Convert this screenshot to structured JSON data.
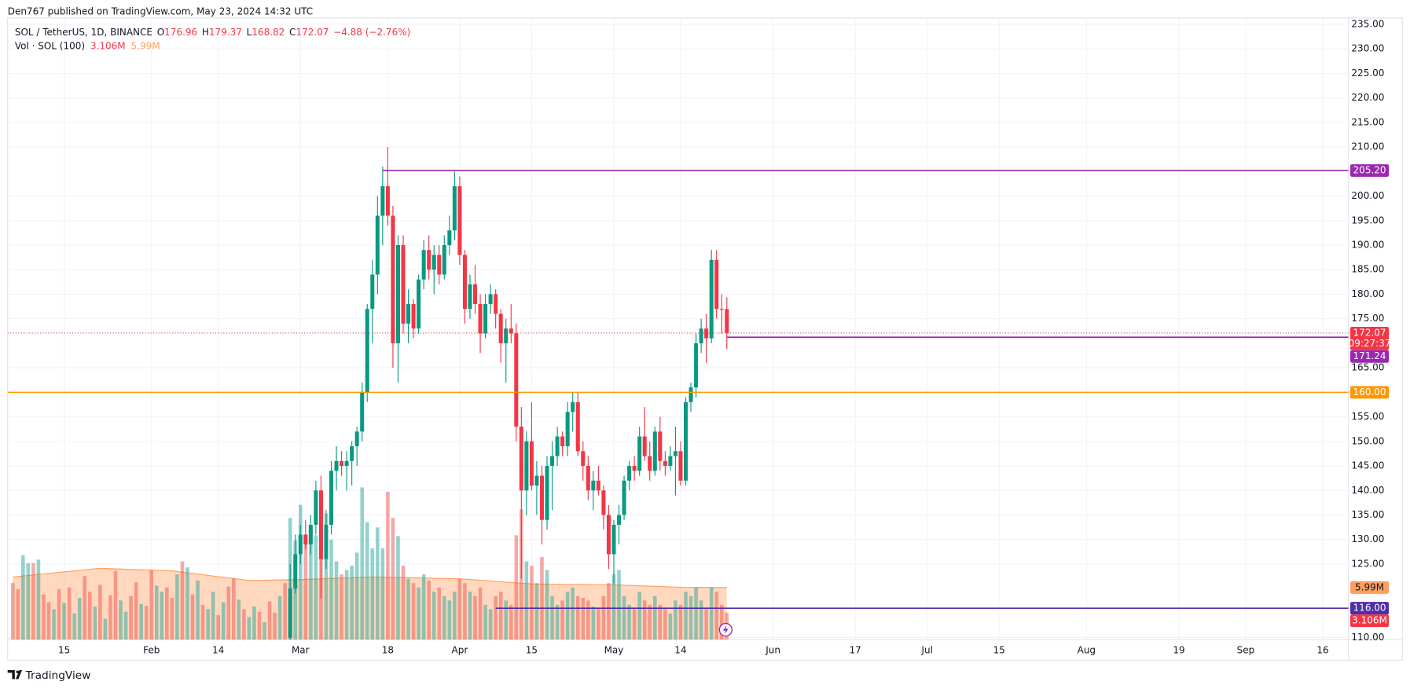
{
  "header": {
    "publisher": "Den767 published on TradingView.com, May 23, 2024 14:32 UTC",
    "footer": "TradingView"
  },
  "chart_data": {
    "type": "candlestick",
    "legend_title": "SOL / TetherUS, 1D, BINANCE",
    "ohlc_legend": [
      [
        "O",
        "176.96"
      ],
      [
        "H",
        "179.37"
      ],
      [
        "L",
        "168.82"
      ],
      [
        "C",
        "172.07"
      ]
    ],
    "change": "−4.88 (−2.76%)",
    "volume_title": "Vol · SOL (100)",
    "up_color": "#089981",
    "down_color": "#f23645",
    "xlim": [
      "2024-01-04",
      "2024-09-21"
    ],
    "ylim": [
      109.6,
      236.3
    ],
    "yticks": [
      {
        "value": 235,
        "label": "235.00"
      },
      {
        "value": 230,
        "label": "230.00"
      },
      {
        "value": 225,
        "label": "225.00"
      },
      {
        "value": 220,
        "label": "220.00"
      },
      {
        "value": 215,
        "label": "215.00"
      },
      {
        "value": 210,
        "label": "210.00"
      },
      {
        "value": 200,
        "label": "200.00"
      },
      {
        "value": 195,
        "label": "195.00"
      },
      {
        "value": 190,
        "label": "190.00"
      },
      {
        "value": 185,
        "label": "185.00"
      },
      {
        "value": 180,
        "label": "180.00"
      },
      {
        "value": 175,
        "label": "175.00"
      },
      {
        "value": 165,
        "label": "165.00"
      },
      {
        "value": 155,
        "label": "155.00"
      },
      {
        "value": 150,
        "label": "150.00"
      },
      {
        "value": 145,
        "label": "145.00"
      },
      {
        "value": 140,
        "label": "140.00"
      },
      {
        "value": 135,
        "label": "135.00"
      },
      {
        "value": 130,
        "label": "130.00"
      },
      {
        "value": 125,
        "label": "125.00"
      },
      {
        "value": 110,
        "label": "110.00"
      }
    ],
    "xticks": [
      {
        "value": "2024-01-15",
        "label": "15"
      },
      {
        "value": "2024-02-01",
        "label": "Feb"
      },
      {
        "value": "2024-02-14",
        "label": "14"
      },
      {
        "value": "2024-03-01",
        "label": "Mar"
      },
      {
        "value": "2024-03-18",
        "label": "18"
      },
      {
        "value": "2024-04-01",
        "label": "Apr"
      },
      {
        "value": "2024-04-15",
        "label": "15"
      },
      {
        "value": "2024-05-01",
        "label": "May"
      },
      {
        "value": "2024-05-14",
        "label": "14"
      },
      {
        "value": "2024-06-01",
        "label": "Jun"
      },
      {
        "value": "2024-06-17",
        "label": "17"
      },
      {
        "value": "2024-07-01",
        "label": "Jul"
      },
      {
        "value": "2024-07-15",
        "label": "15"
      },
      {
        "value": "2024-08-01",
        "label": "Aug"
      },
      {
        "value": "2024-08-19",
        "label": "19"
      },
      {
        "value": "2024-09-01",
        "label": "Sep"
      },
      {
        "value": "2024-09-16",
        "label": "16"
      }
    ],
    "grid": true,
    "x": [
      "2024-01-05",
      "2024-01-06",
      "2024-01-07",
      "2024-01-08",
      "2024-01-09",
      "2024-01-10",
      "2024-01-11",
      "2024-01-12",
      "2024-01-13",
      "2024-01-14",
      "2024-01-15",
      "2024-01-16",
      "2024-01-17",
      "2024-01-18",
      "2024-01-19",
      "2024-01-20",
      "2024-01-21",
      "2024-01-22",
      "2024-01-23",
      "2024-01-24",
      "2024-01-25",
      "2024-01-26",
      "2024-01-27",
      "2024-01-28",
      "2024-01-29",
      "2024-01-30",
      "2024-01-31",
      "2024-02-01",
      "2024-02-02",
      "2024-02-03",
      "2024-02-04",
      "2024-02-05",
      "2024-02-06",
      "2024-02-07",
      "2024-02-08",
      "2024-02-09",
      "2024-02-10",
      "2024-02-11",
      "2024-02-12",
      "2024-02-13",
      "2024-02-14",
      "2024-02-15",
      "2024-02-16",
      "2024-02-17",
      "2024-02-18",
      "2024-02-19",
      "2024-02-20",
      "2024-02-21",
      "2024-02-22",
      "2024-02-23",
      "2024-02-24",
      "2024-02-25",
      "2024-02-26",
      "2024-02-27",
      "2024-02-28",
      "2024-02-29",
      "2024-03-01",
      "2024-03-02",
      "2024-03-03",
      "2024-03-04",
      "2024-03-05",
      "2024-03-06",
      "2024-03-07",
      "2024-03-08",
      "2024-03-09",
      "2024-03-10",
      "2024-03-11",
      "2024-03-12",
      "2024-03-13",
      "2024-03-14",
      "2024-03-15",
      "2024-03-16",
      "2024-03-17",
      "2024-03-18",
      "2024-03-19",
      "2024-03-20",
      "2024-03-21",
      "2024-03-22",
      "2024-03-23",
      "2024-03-24",
      "2024-03-25",
      "2024-03-26",
      "2024-03-27",
      "2024-03-28",
      "2024-03-29",
      "2024-03-30",
      "2024-03-31",
      "2024-04-01",
      "2024-04-02",
      "2024-04-03",
      "2024-04-04",
      "2024-04-05",
      "2024-04-06",
      "2024-04-07",
      "2024-04-08",
      "2024-04-09",
      "2024-04-10",
      "2024-04-11",
      "2024-04-12",
      "2024-04-13",
      "2024-04-14",
      "2024-04-15",
      "2024-04-16",
      "2024-04-17",
      "2024-04-18",
      "2024-04-19",
      "2024-04-20",
      "2024-04-21",
      "2024-04-22",
      "2024-04-23",
      "2024-04-24",
      "2024-04-25",
      "2024-04-26",
      "2024-04-27",
      "2024-04-28",
      "2024-04-29",
      "2024-04-30",
      "2024-05-01",
      "2024-05-02",
      "2024-05-03",
      "2024-05-04",
      "2024-05-05",
      "2024-05-06",
      "2024-05-07",
      "2024-05-08",
      "2024-05-09",
      "2024-05-10",
      "2024-05-11",
      "2024-05-12",
      "2024-05-13",
      "2024-05-14",
      "2024-05-15",
      "2024-05-16",
      "2024-05-17",
      "2024-05-18",
      "2024-05-19",
      "2024-05-20",
      "2024-05-21",
      "2024-05-22",
      "2024-05-23"
    ],
    "ohlc": [
      null,
      null,
      null,
      null,
      null,
      null,
      null,
      null,
      null,
      null,
      null,
      null,
      null,
      null,
      null,
      null,
      null,
      null,
      null,
      null,
      null,
      null,
      null,
      null,
      null,
      null,
      null,
      null,
      null,
      null,
      null,
      null,
      null,
      null,
      null,
      null,
      null,
      null,
      null,
      null,
      null,
      null,
      null,
      null,
      null,
      null,
      null,
      null,
      null,
      null,
      null,
      null,
      null,
      null,
      [
        110,
        125,
        108,
        120
      ],
      [
        120,
        131,
        119,
        127
      ],
      [
        127,
        133,
        125,
        131
      ],
      [
        131,
        134,
        128,
        129
      ],
      [
        129,
        135,
        127,
        133
      ],
      [
        133,
        142,
        131,
        140
      ],
      [
        140,
        143,
        118,
        126
      ],
      [
        126,
        136,
        124,
        133
      ],
      [
        133,
        146,
        131,
        144
      ],
      [
        144,
        149,
        140,
        146
      ],
      [
        146,
        148,
        143,
        145
      ],
      [
        145,
        148,
        140,
        146
      ],
      [
        146,
        150,
        141,
        149
      ],
      [
        149,
        153,
        145,
        152
      ],
      [
        152,
        162,
        150,
        160
      ],
      [
        160,
        178,
        158,
        177
      ],
      [
        177,
        187,
        170,
        184
      ],
      [
        184,
        200,
        180,
        196
      ],
      [
        196,
        206,
        190,
        202
      ],
      [
        202,
        210,
        194,
        196
      ],
      [
        196,
        198,
        165,
        170
      ],
      [
        170,
        192,
        162,
        190
      ],
      [
        190,
        192,
        172,
        174
      ],
      [
        174,
        181,
        170,
        178
      ],
      [
        178,
        179,
        171,
        173
      ],
      [
        173,
        184,
        172,
        183
      ],
      [
        183,
        191,
        181,
        189
      ],
      [
        189,
        192,
        183,
        185
      ],
      [
        185,
        190,
        180,
        188
      ],
      [
        188,
        190,
        182,
        184
      ],
      [
        184,
        192,
        183,
        190
      ],
      [
        190,
        196,
        188,
        193
      ],
      [
        193,
        205,
        191,
        202
      ],
      [
        202,
        204,
        186,
        188
      ],
      [
        188,
        189,
        174,
        177
      ],
      [
        177,
        184,
        175,
        182
      ],
      [
        182,
        186,
        176,
        178
      ],
      [
        178,
        180,
        168,
        172
      ],
      [
        172,
        180,
        171,
        178
      ],
      [
        178,
        182,
        176,
        180
      ],
      [
        180,
        181,
        173,
        176
      ],
      [
        176,
        177,
        166,
        170
      ],
      [
        170,
        175,
        162,
        173
      ],
      [
        173,
        178,
        170,
        172
      ],
      [
        172,
        174,
        150,
        153
      ],
      [
        153,
        157,
        122,
        140
      ],
      [
        140,
        152,
        135,
        150
      ],
      [
        150,
        158,
        140,
        141
      ],
      [
        141,
        146,
        135,
        143
      ],
      [
        143,
        145,
        129,
        134
      ],
      [
        134,
        147,
        132,
        145
      ],
      [
        145,
        150,
        136,
        147
      ],
      [
        147,
        153,
        145,
        151
      ],
      [
        151,
        152,
        147,
        149
      ],
      [
        149,
        158,
        147,
        156
      ],
      [
        156,
        160,
        152,
        158
      ],
      [
        158,
        160,
        147,
        148
      ],
      [
        148,
        150,
        142,
        145
      ],
      [
        145,
        147,
        138,
        140
      ],
      [
        140,
        144,
        136,
        142
      ],
      [
        142,
        145,
        139,
        140
      ],
      [
        140,
        141,
        132,
        135
      ],
      [
        135,
        137,
        124,
        127
      ],
      [
        127,
        134,
        121,
        133
      ],
      [
        133,
        137,
        129,
        135
      ],
      [
        135,
        143,
        134,
        142
      ],
      [
        142,
        146,
        140,
        145
      ],
      [
        145,
        147,
        142,
        144
      ],
      [
        144,
        153,
        143,
        151
      ],
      [
        151,
        157,
        146,
        147
      ],
      [
        147,
        150,
        142,
        144
      ],
      [
        144,
        153,
        143,
        152
      ],
      [
        152,
        155,
        144,
        146
      ],
      [
        146,
        148,
        143,
        145
      ],
      [
        145,
        149,
        144,
        147
      ],
      [
        147,
        153,
        139,
        148
      ],
      [
        148,
        150,
        141,
        142
      ],
      [
        142,
        159,
        141,
        158
      ],
      [
        158,
        162,
        156,
        161
      ],
      [
        161,
        172,
        159,
        170
      ],
      [
        170,
        175,
        168,
        173
      ],
      [
        173,
        176,
        166,
        171
      ],
      [
        171,
        189,
        170,
        187
      ],
      [
        187,
        189,
        175,
        177
      ],
      [
        177,
        180,
        172,
        176.96
      ],
      [
        176.96,
        179.37,
        168.82,
        172.07
      ]
    ],
    "volume_lim": [
      0,
      71.5
    ],
    "volume": {
      "values": [
        6.5,
        5.8,
        9.7,
        8.8,
        8.8,
        9.2,
        5.2,
        4.3,
        3.5,
        5.8,
        4.2,
        6.0,
        3.0,
        4.8,
        7.3,
        5.5,
        3.8,
        6.3,
        2.4,
        5.1,
        7.9,
        4.5,
        3.2,
        5.0,
        6.6,
        4.1,
        3.9,
        8.0,
        6.2,
        5.5,
        6.0,
        4.8,
        7.5,
        9.0,
        8.3,
        5.2,
        6.8,
        4.0,
        3.5,
        5.5,
        2.8,
        4.3,
        6.1,
        7.0,
        4.6,
        3.5,
        2.6,
        3.8,
        3.2,
        2.0,
        4.4,
        3.1,
        5.0,
        6.5,
        14.0,
        11.4,
        15.5,
        12.0,
        11.0,
        12.0,
        17.0,
        14.5,
        11.5,
        9.0,
        7.5,
        8.0,
        8.5,
        10.0,
        17.5,
        13.5,
        10.5,
        12.9,
        10.5,
        17.0,
        14.0,
        11.9,
        8.5,
        7.0,
        6.5,
        6.0,
        7.5,
        6.8,
        5.5,
        6.0,
        5.0,
        4.5,
        5.5,
        7.0,
        6.5,
        5.5,
        5.0,
        6.0,
        4.0,
        3.5,
        5.0,
        5.5,
        4.5,
        4.0,
        12.0,
        15.0,
        9.0,
        8.5,
        6.5,
        9.5,
        8.0,
        5.0,
        4.0,
        4.5,
        5.5,
        6.0,
        5.0,
        4.8,
        4.5,
        3.8,
        3.5,
        5.0,
        6.5,
        7.5,
        8.0,
        5.0,
        4.0,
        3.5,
        5.5,
        4.5,
        4.0,
        5.0,
        4.0,
        3.5,
        3.0,
        4.5,
        4.0,
        5.5,
        5.0,
        6.0,
        4.5,
        3.5,
        6.0,
        5.5,
        4.0,
        3.106
      ],
      "colors": [
        "#ef5350",
        "#ef5350",
        "#26a69a",
        "#26a69a",
        "#ef5350",
        "#26a69a",
        "#ef5350",
        "#ef5350",
        "#26a69a",
        "#ef5350",
        "#26a69a",
        "#ef5350",
        "#26a69a",
        "#26a69a",
        "#ef5350",
        "#ef5350",
        "#26a69a",
        "#ef5350",
        "#26a69a",
        "#ef5350",
        "#ef5350",
        "#26a69a",
        "#26a69a",
        "#ef5350",
        "#ef5350",
        "#26a69a",
        "#ef5350",
        "#ef5350",
        "#26a69a",
        "#26a69a",
        "#ef5350",
        "#ef5350",
        "#26a69a",
        "#ef5350",
        "#26a69a",
        "#ef5350",
        "#26a69a",
        "#ef5350",
        "#26a69a",
        "#26a69a",
        "#ef5350",
        "#26a69a",
        "#ef5350",
        "#ef5350",
        "#26a69a",
        "#ef5350",
        "#26a69a",
        "#26a69a",
        "#ef5350",
        "#26a69a",
        "#ef5350",
        "#ef5350",
        "#26a69a",
        "#ef5350",
        "#26a69a",
        "#26a69a",
        "#26a69a",
        "#ef5350",
        "#26a69a",
        "#26a69a",
        "#ef5350",
        "#26a69a",
        "#26a69a",
        "#26a69a",
        "#ef5350",
        "#26a69a",
        "#26a69a",
        "#26a69a",
        "#26a69a",
        "#26a69a",
        "#26a69a",
        "#26a69a",
        "#26a69a",
        "#ef5350",
        "#ef5350",
        "#26a69a",
        "#ef5350",
        "#26a69a",
        "#ef5350",
        "#26a69a",
        "#26a69a",
        "#ef5350",
        "#26a69a",
        "#ef5350",
        "#26a69a",
        "#26a69a",
        "#26a69a",
        "#ef5350",
        "#ef5350",
        "#26a69a",
        "#ef5350",
        "#ef5350",
        "#26a69a",
        "#26a69a",
        "#ef5350",
        "#ef5350",
        "#26a69a",
        "#ef5350",
        "#ef5350",
        "#ef5350",
        "#26a69a",
        "#ef5350",
        "#26a69a",
        "#ef5350",
        "#26a69a",
        "#26a69a",
        "#26a69a",
        "#ef5350",
        "#26a69a",
        "#26a69a",
        "#ef5350",
        "#ef5350",
        "#ef5350",
        "#26a69a",
        "#ef5350",
        "#ef5350",
        "#ef5350",
        "#26a69a",
        "#26a69a",
        "#26a69a",
        "#26a69a",
        "#ef5350",
        "#26a69a",
        "#ef5350",
        "#ef5350",
        "#26a69a",
        "#ef5350",
        "#ef5350",
        "#26a69a",
        "#26a69a",
        "#ef5350",
        "#26a69a",
        "#26a69a",
        "#26a69a",
        "#26a69a",
        "#ef5350",
        "#26a69a",
        "#ef5350",
        "#ef5350",
        "#ef5350"
      ],
      "last_label": "3.106M",
      "label_color": "#f23645"
    },
    "volume_ma": {
      "x": [
        "2024-01-05",
        "2024-01-22",
        "2024-02-05",
        "2024-02-20",
        "2024-03-01",
        "2024-03-15",
        "2024-04-01",
        "2024-04-15",
        "2024-05-01",
        "2024-05-15",
        "2024-05-23"
      ],
      "values": [
        7.2,
        8.2,
        7.9,
        6.8,
        6.9,
        7.2,
        7.0,
        6.4,
        6.3,
        6.0,
        5.99
      ],
      "last_label": "5.99M",
      "color": "#ff9e5e"
    },
    "levels": [
      {
        "value": 205.2,
        "label": "205.20",
        "color": "#9c27b0",
        "from": "2024-03-17"
      },
      {
        "value": 171.24,
        "label": "171.24",
        "color": "#9c27b0",
        "from": "2024-05-23"
      },
      {
        "value": 160,
        "label": "160.00",
        "color": "#ff9800",
        "from": null
      },
      {
        "value": 116,
        "label": "116.00",
        "color": "#512da8",
        "from": "2024-04-08"
      }
    ],
    "last_price": {
      "value": 172.07,
      "label": "172.07",
      "countdown": "09:27:37",
      "color": "#f23645"
    }
  }
}
